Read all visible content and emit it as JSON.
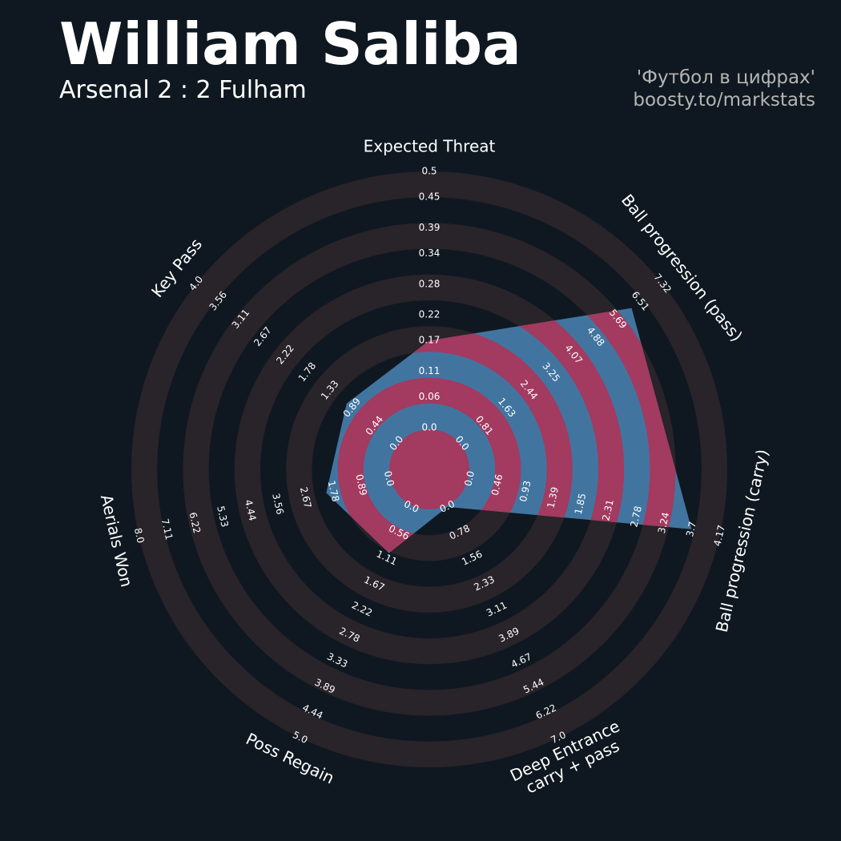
{
  "chart_data": {
    "type": "radar",
    "title": "William Saliba",
    "subtitle": "Arsenal 2 : 2 Fulham",
    "credits": [
      "'Футбол в цифрах'",
      "boosty.to/markstats"
    ],
    "params": [
      "Expected Threat",
      "Ball progression (pass)",
      "Ball progression (carry)",
      "Deep Entrance\ncarry + pass",
      "Poss Regain",
      "Aerials Won",
      "Key Pass"
    ],
    "values": [
      0.17,
      6.2,
      3.7,
      0.0,
      1.0,
      2.0,
      1.0
    ],
    "ranges": [
      [
        0,
        0.5
      ],
      [
        0,
        7.32
      ],
      [
        0,
        4.17
      ],
      [
        0,
        7
      ],
      [
        0,
        5
      ],
      [
        0,
        8
      ],
      [
        0,
        4
      ]
    ],
    "ticks": [
      [
        {
          "value": 0,
          "label": "0.0"
        },
        0.06,
        0.11,
        0.17,
        0.22,
        0.28,
        0.34,
        0.39,
        0.45,
        0.5
      ],
      [
        {
          "value": 0,
          "label": "0.0"
        },
        0.81,
        1.63,
        2.44,
        3.25,
        4.07,
        4.88,
        5.69,
        6.51,
        7.32
      ],
      [
        {
          "value": 0,
          "label": "0.0"
        },
        0.46,
        0.93,
        1.39,
        1.85,
        2.31,
        2.78,
        3.24,
        3.7,
        4.17
      ],
      [
        {
          "value": 0,
          "label": "0.0"
        },
        0.78,
        1.56,
        2.33,
        3.11,
        3.89,
        4.67,
        5.44,
        6.22,
        {
          "value": 7,
          "label": "7.0"
        }
      ],
      [
        {
          "value": 0,
          "label": "0.0"
        },
        0.56,
        1.11,
        1.67,
        2.22,
        2.78,
        3.33,
        3.89,
        4.44,
        {
          "value": 5,
          "label": "5.0"
        }
      ],
      [
        {
          "value": 0,
          "label": "0.0"
        },
        0.89,
        1.78,
        2.67,
        3.56,
        4.44,
        5.33,
        6.22,
        7.11,
        {
          "value": 8,
          "label": "8.0"
        }
      ],
      [
        {
          "value": 0,
          "label": "0.0"
        },
        0.44,
        0.89,
        1.33,
        1.78,
        2.22,
        2.67,
        3.11,
        3.56,
        {
          "value": 4,
          "label": "4.0"
        }
      ]
    ],
    "color": "#4175a0",
    "ring_highlight_color": "#a33a60",
    "ring_color": "#29232a"
  }
}
